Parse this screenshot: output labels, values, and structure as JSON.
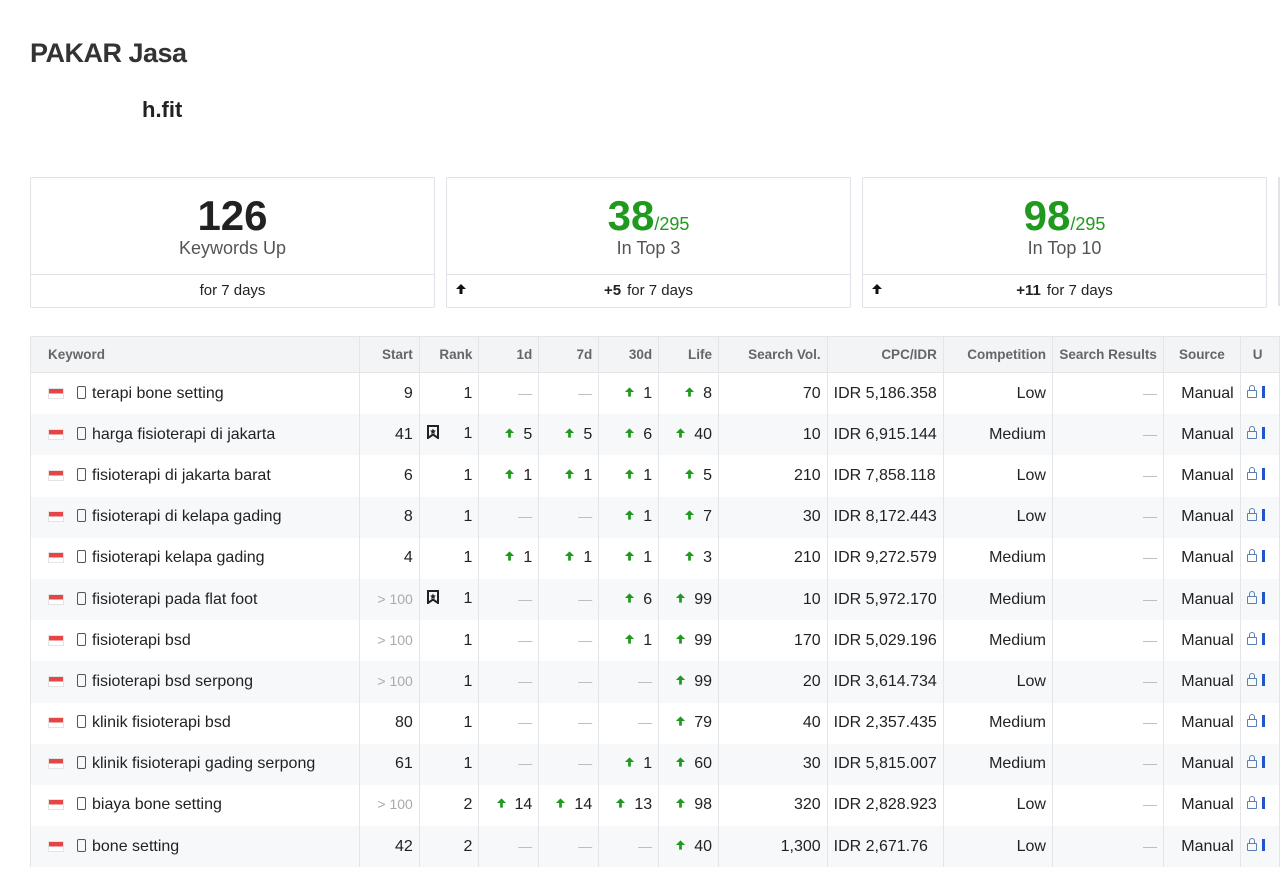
{
  "page": {
    "title": "PAKAR Jasa",
    "domain": "h.fit"
  },
  "cards": [
    {
      "value": "126",
      "total": "",
      "label": "Keywords Up",
      "delta": "",
      "footer": "for 7 days",
      "color": "#222222"
    },
    {
      "value": "38",
      "total": "/295",
      "label": "In Top 3",
      "delta": "+5",
      "footer": "for 7 days",
      "color": "#1f9a1f"
    },
    {
      "value": "98",
      "total": "/295",
      "label": "In Top 10",
      "delta": "+11",
      "footer": "for 7 days",
      "color": "#1f9a1f"
    }
  ],
  "table": {
    "headers": {
      "keyword": "Keyword",
      "start": "Start",
      "rank": "Rank",
      "d1": "1d",
      "d7": "7d",
      "d30": "30d",
      "life": "Life",
      "volume": "Search Vol.",
      "cpc": "CPC/IDR",
      "competition": "Competition",
      "results": "Search Results",
      "source": "Source",
      "u": "U"
    },
    "rows": [
      {
        "keyword": "terapi bone setting",
        "start": "9",
        "rank": "1",
        "bookmark": false,
        "d1": "",
        "d7": "",
        "d30": "1",
        "life": "8",
        "volume": "70",
        "cpc": "IDR 5,186.358",
        "competition": "Low",
        "source": "Manual"
      },
      {
        "keyword": "harga fisioterapi di jakarta",
        "start": "41",
        "rank": "1",
        "bookmark": true,
        "d1": "5",
        "d7": "5",
        "d30": "6",
        "life": "40",
        "volume": "10",
        "cpc": "IDR 6,915.144",
        "competition": "Medium",
        "source": "Manual"
      },
      {
        "keyword": "fisioterapi di jakarta barat",
        "start": "6",
        "rank": "1",
        "bookmark": false,
        "d1": "1",
        "d7": "1",
        "d30": "1",
        "life": "5",
        "volume": "210",
        "cpc": "IDR 7,858.118",
        "competition": "Low",
        "source": "Manual"
      },
      {
        "keyword": "fisioterapi di kelapa gading",
        "start": "8",
        "rank": "1",
        "bookmark": false,
        "d1": "",
        "d7": "",
        "d30": "1",
        "life": "7",
        "volume": "30",
        "cpc": "IDR 8,172.443",
        "competition": "Low",
        "source": "Manual"
      },
      {
        "keyword": "fisioterapi kelapa gading",
        "start": "4",
        "rank": "1",
        "bookmark": false,
        "d1": "1",
        "d7": "1",
        "d30": "1",
        "life": "3",
        "volume": "210",
        "cpc": "IDR 9,272.579",
        "competition": "Medium",
        "source": "Manual"
      },
      {
        "keyword": "fisioterapi pada flat foot",
        "start": "> 100",
        "rank": "1",
        "bookmark": true,
        "d1": "",
        "d7": "",
        "d30": "6",
        "life": "99",
        "volume": "10",
        "cpc": "IDR 5,972.170",
        "competition": "Medium",
        "source": "Manual"
      },
      {
        "keyword": "fisioterapi bsd",
        "start": "> 100",
        "rank": "1",
        "bookmark": false,
        "d1": "",
        "d7": "",
        "d30": "1",
        "life": "99",
        "volume": "170",
        "cpc": "IDR 5,029.196",
        "competition": "Medium",
        "source": "Manual"
      },
      {
        "keyword": "fisioterapi bsd serpong",
        "start": "> 100",
        "rank": "1",
        "bookmark": false,
        "d1": "",
        "d7": "",
        "d30": "",
        "life": "99",
        "volume": "20",
        "cpc": "IDR 3,614.734",
        "competition": "Low",
        "source": "Manual"
      },
      {
        "keyword": "klinik fisioterapi bsd",
        "start": "80",
        "rank": "1",
        "bookmark": false,
        "d1": "",
        "d7": "",
        "d30": "",
        "life": "79",
        "volume": "40",
        "cpc": "IDR 2,357.435",
        "competition": "Medium",
        "source": "Manual"
      },
      {
        "keyword": "klinik fisioterapi gading serpong",
        "start": "61",
        "rank": "1",
        "bookmark": false,
        "d1": "",
        "d7": "",
        "d30": "1",
        "life": "60",
        "volume": "30",
        "cpc": "IDR 5,815.007",
        "competition": "Medium",
        "source": "Manual"
      },
      {
        "keyword": "biaya bone setting",
        "start": "> 100",
        "rank": "2",
        "bookmark": false,
        "d1": "14",
        "d7": "14",
        "d30": "13",
        "life": "98",
        "volume": "320",
        "cpc": "IDR 2,828.923",
        "competition": "Low",
        "source": "Manual"
      },
      {
        "keyword": "bone setting",
        "start": "42",
        "rank": "2",
        "bookmark": false,
        "d1": "",
        "d7": "",
        "d30": "",
        "life": "40",
        "volume": "1,300",
        "cpc": "IDR 2,671.76",
        "competition": "Low",
        "source": "Manual"
      }
    ]
  },
  "icons": {
    "flag": "indonesia-flag-icon",
    "device": "mobile-icon",
    "trend": "arrow-up-icon",
    "bookmark": "bookmark-icon",
    "lock": "lock-icon"
  },
  "colors": {
    "positive": "#1f9a1f",
    "header_bg": "#f3f4f6",
    "stripe": "#f7f8fa"
  }
}
